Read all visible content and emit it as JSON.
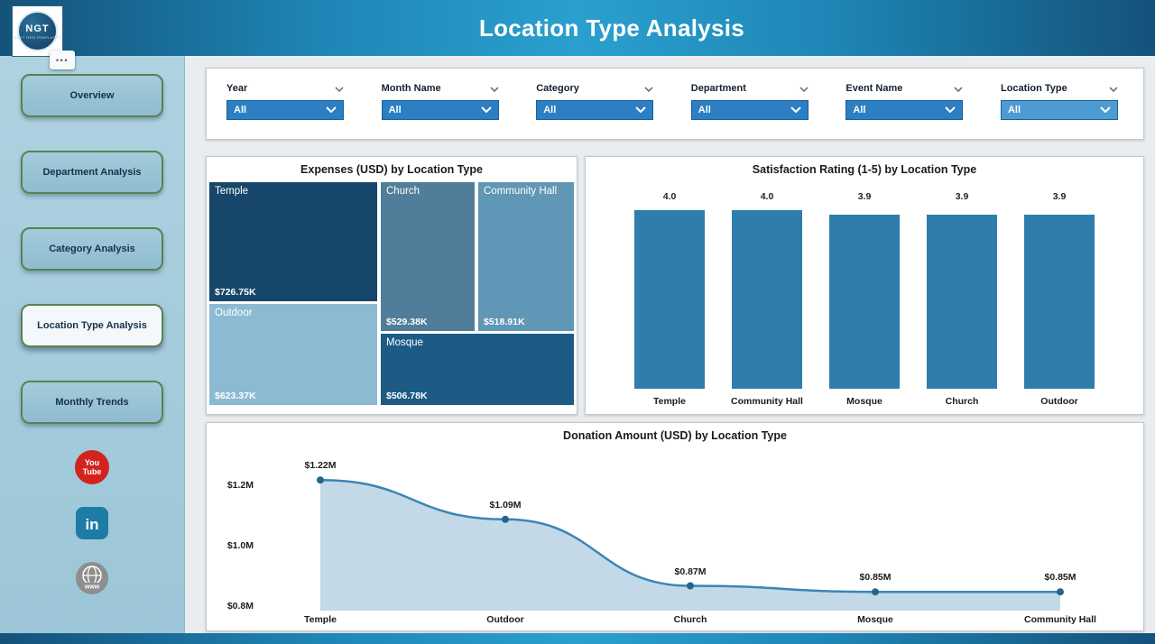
{
  "header": {
    "title": "Location Type Analysis",
    "logo_text": "NGT",
    "logo_sub": "NEXT GEN TEMPLATES"
  },
  "ui": {
    "more_glyph": "•••"
  },
  "sidebar": {
    "items": [
      {
        "label": "Overview",
        "active": false
      },
      {
        "label": "Department Analysis",
        "active": false
      },
      {
        "label": "Category Analysis",
        "active": false
      },
      {
        "label": "Location Type Analysis",
        "active": true
      },
      {
        "label": "Monthly Trends",
        "active": false
      }
    ],
    "social": [
      {
        "name": "youtube",
        "color": "#d2241f"
      },
      {
        "name": "linkedin",
        "color": "#1d7ca5"
      },
      {
        "name": "website",
        "color": "#8e8e8e"
      }
    ]
  },
  "filters": [
    {
      "label": "Year",
      "value": "All",
      "accent": "#2b7fc2"
    },
    {
      "label": "Month Name",
      "value": "All",
      "accent": "#2b7fc2"
    },
    {
      "label": "Category",
      "value": "All",
      "accent": "#2b7fc2"
    },
    {
      "label": "Department",
      "value": "All",
      "accent": "#2b7fc2"
    },
    {
      "label": "Event Name",
      "value": "All",
      "accent": "#2b7fc2"
    },
    {
      "label": "Location Type",
      "value": "All",
      "accent": "#4d9bd3"
    }
  ],
  "chart_data": [
    {
      "type": "treemap",
      "title": "Expenses (USD) by Location Type",
      "items": [
        {
          "name": "Temple",
          "value": 726750,
          "value_label": "$726.75K",
          "color": "#17466b"
        },
        {
          "name": "Church",
          "value": 529380,
          "value_label": "$529.38K",
          "color": "#507e9a"
        },
        {
          "name": "Community Hall",
          "value": 518910,
          "value_label": "$518.91K",
          "color": "#6096b6"
        },
        {
          "name": "Outdoor",
          "value": 623370,
          "value_label": "$623.37K",
          "color": "#8cbad3"
        },
        {
          "name": "Mosque",
          "value": 506780,
          "value_label": "$506.78K",
          "color": "#1d5b85"
        }
      ]
    },
    {
      "type": "bar",
      "title": "Satisfaction Rating (1-5) by Location Type",
      "categories": [
        "Temple",
        "Community Hall",
        "Mosque",
        "Church",
        "Outdoor"
      ],
      "values": [
        4.0,
        4.0,
        3.9,
        3.9,
        3.9
      ],
      "value_labels": [
        "4.0",
        "4.0",
        "3.9",
        "3.9",
        "3.9"
      ],
      "ylim": [
        0,
        4.1
      ],
      "bar_color": "#2e7dad",
      "grid": false,
      "legend": false
    },
    {
      "type": "area",
      "title": "Donation Amount (USD) by Location Type",
      "categories": [
        "Temple",
        "Outdoor",
        "Church",
        "Mosque",
        "Community Hall"
      ],
      "values": [
        1.22,
        1.09,
        0.87,
        0.85,
        0.85
      ],
      "value_labels": [
        "$1.22M",
        "$1.09M",
        "$0.87M",
        "$0.85M",
        "$0.85M"
      ],
      "y_ticks": [
        "$1.2M",
        "$1.0M",
        "$0.8M"
      ],
      "y_tick_values": [
        1.2,
        1.0,
        0.8
      ],
      "ylim": [
        0.788,
        1.313
      ],
      "line_color": "#3a85b5",
      "dot_color": "#24648f",
      "fill_color": "#c3d9e8",
      "grid": false,
      "legend": false
    }
  ]
}
